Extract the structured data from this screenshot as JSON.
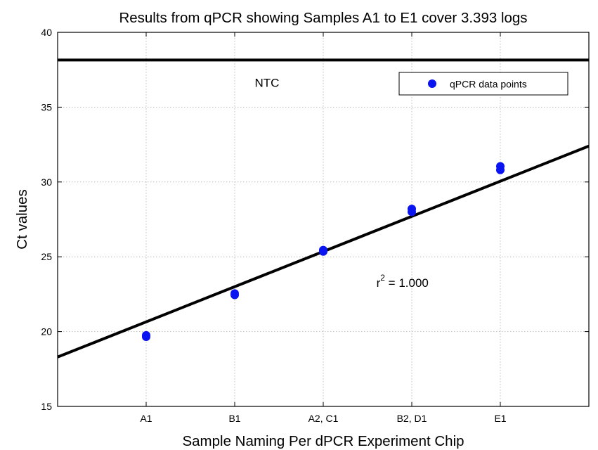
{
  "chart_data": {
    "type": "scatter",
    "title": "Results from qPCR showing Samples A1 to E1 cover 3.393 logs",
    "xlabel": "Sample Naming Per dPCR Experiment Chip",
    "ylabel": "Ct values",
    "categories": [
      "A1",
      "B1",
      "A2, C1",
      "B2, D1",
      "E1"
    ],
    "xlim": [
      0,
      6
    ],
    "ylim": [
      15,
      40
    ],
    "y_ticks": [
      15,
      20,
      25,
      30,
      35,
      40
    ],
    "grid": true,
    "legend_position": "top-right",
    "series": [
      {
        "name": "qPCR data points",
        "color": "#0a14f0",
        "points": [
          {
            "x": 1,
            "y": 19.65
          },
          {
            "x": 1,
            "y": 19.75
          },
          {
            "x": 2,
            "y": 22.45
          },
          {
            "x": 2,
            "y": 22.55
          },
          {
            "x": 3,
            "y": 25.35
          },
          {
            "x": 3,
            "y": 25.45
          },
          {
            "x": 4,
            "y": 28.0
          },
          {
            "x": 4,
            "y": 28.2
          },
          {
            "x": 5,
            "y": 30.8
          },
          {
            "x": 5,
            "y": 31.05
          }
        ]
      }
    ],
    "fit_line": {
      "x": [
        0,
        6
      ],
      "y": [
        18.3,
        32.4
      ]
    },
    "ntc_line": {
      "y": 38.15,
      "label": "NTC"
    },
    "annotation": {
      "base": "r",
      "superscript": "2",
      "text": " = 1.000",
      "x": 3.6,
      "y": 23.0
    }
  }
}
